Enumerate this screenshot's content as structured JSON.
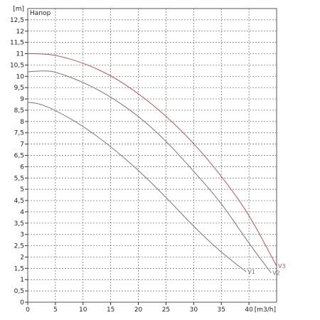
{
  "chart_data": {
    "type": "line",
    "title": "Напор",
    "xlabel": "[m3/h]",
    "ylabel": "[m]",
    "xlim": [
      0,
      45
    ],
    "ylim": [
      0,
      13
    ],
    "grid": true,
    "x_ticks": [
      "0",
      "5",
      "10",
      "15",
      "20",
      "25",
      "30",
      "35",
      "40"
    ],
    "y_ticks": [
      "0",
      "0,5",
      "1",
      "1,5",
      "2",
      "2,5",
      "3",
      "3,5",
      "4",
      "4,5",
      "5",
      "5,5",
      "6",
      "6,5",
      "7",
      "7,5",
      "8",
      "8,5",
      "9",
      "9,5",
      "10",
      "10,5",
      "11",
      "11,5",
      "12",
      "12,5"
    ],
    "series": [
      {
        "name": "V1",
        "color": "#777777",
        "x": [
          0,
          2,
          5,
          10,
          15,
          20,
          25,
          30,
          35,
          39.5
        ],
        "y": [
          8.85,
          8.8,
          8.5,
          7.8,
          6.9,
          5.85,
          4.65,
          3.35,
          2.2,
          1.35
        ]
      },
      {
        "name": "V2",
        "color": "#777777",
        "x": [
          0,
          3,
          5,
          10,
          15,
          20,
          25,
          30,
          35,
          40,
          44
        ],
        "y": [
          10.2,
          10.25,
          10.2,
          9.75,
          9.1,
          8.25,
          7.15,
          5.8,
          4.4,
          2.6,
          1.3
        ]
      },
      {
        "name": "V3",
        "color": "#c0505a",
        "x": [
          0,
          2,
          5,
          10,
          15,
          20,
          25,
          30,
          35,
          40,
          45
        ],
        "y": [
          11.0,
          11.0,
          10.95,
          10.6,
          10.05,
          9.25,
          8.25,
          7.05,
          5.6,
          3.9,
          1.6
        ]
      }
    ]
  }
}
